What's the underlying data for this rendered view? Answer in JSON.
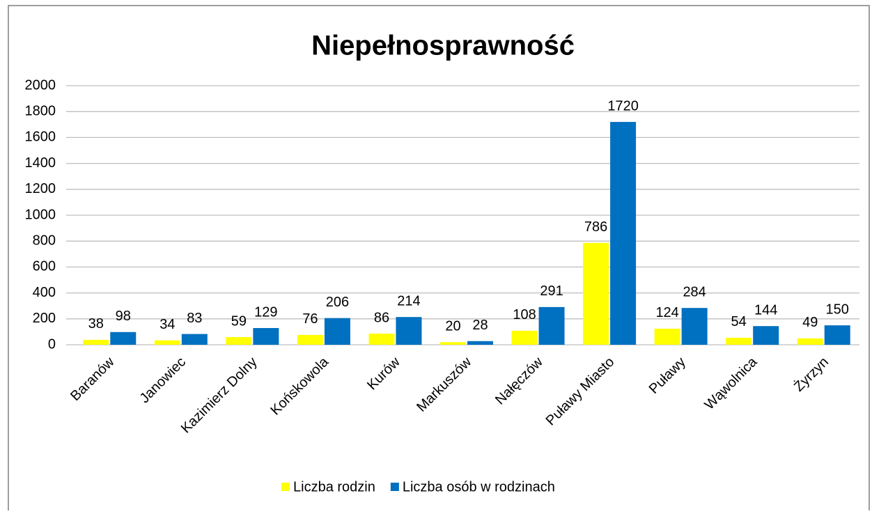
{
  "chart_data": {
    "type": "bar",
    "title": "Niepełnosprawność",
    "categories": [
      "Baranów",
      "Janowiec",
      "Kazimierz Dolny",
      "Końskowola",
      "Kurów",
      "Markuszów",
      "Nałęczów",
      "Puławy Miasto",
      "Puławy",
      "Wąwolnica",
      "Żyrzyn"
    ],
    "series": [
      {
        "name": "Liczba rodzin",
        "color": "#ffff00",
        "values": [
          38,
          34,
          59,
          76,
          86,
          20,
          108,
          786,
          124,
          54,
          49
        ]
      },
      {
        "name": "Liczba osób w rodzinach",
        "color": "#0070c0",
        "values": [
          98,
          83,
          129,
          206,
          214,
          28,
          291,
          1720,
          284,
          144,
          150
        ]
      }
    ],
    "ylim": [
      0,
      2000
    ],
    "yticks": [
      0,
      200,
      400,
      600,
      800,
      1000,
      1200,
      1400,
      1600,
      1800,
      2000
    ],
    "grid": true,
    "legend": "bottom"
  }
}
